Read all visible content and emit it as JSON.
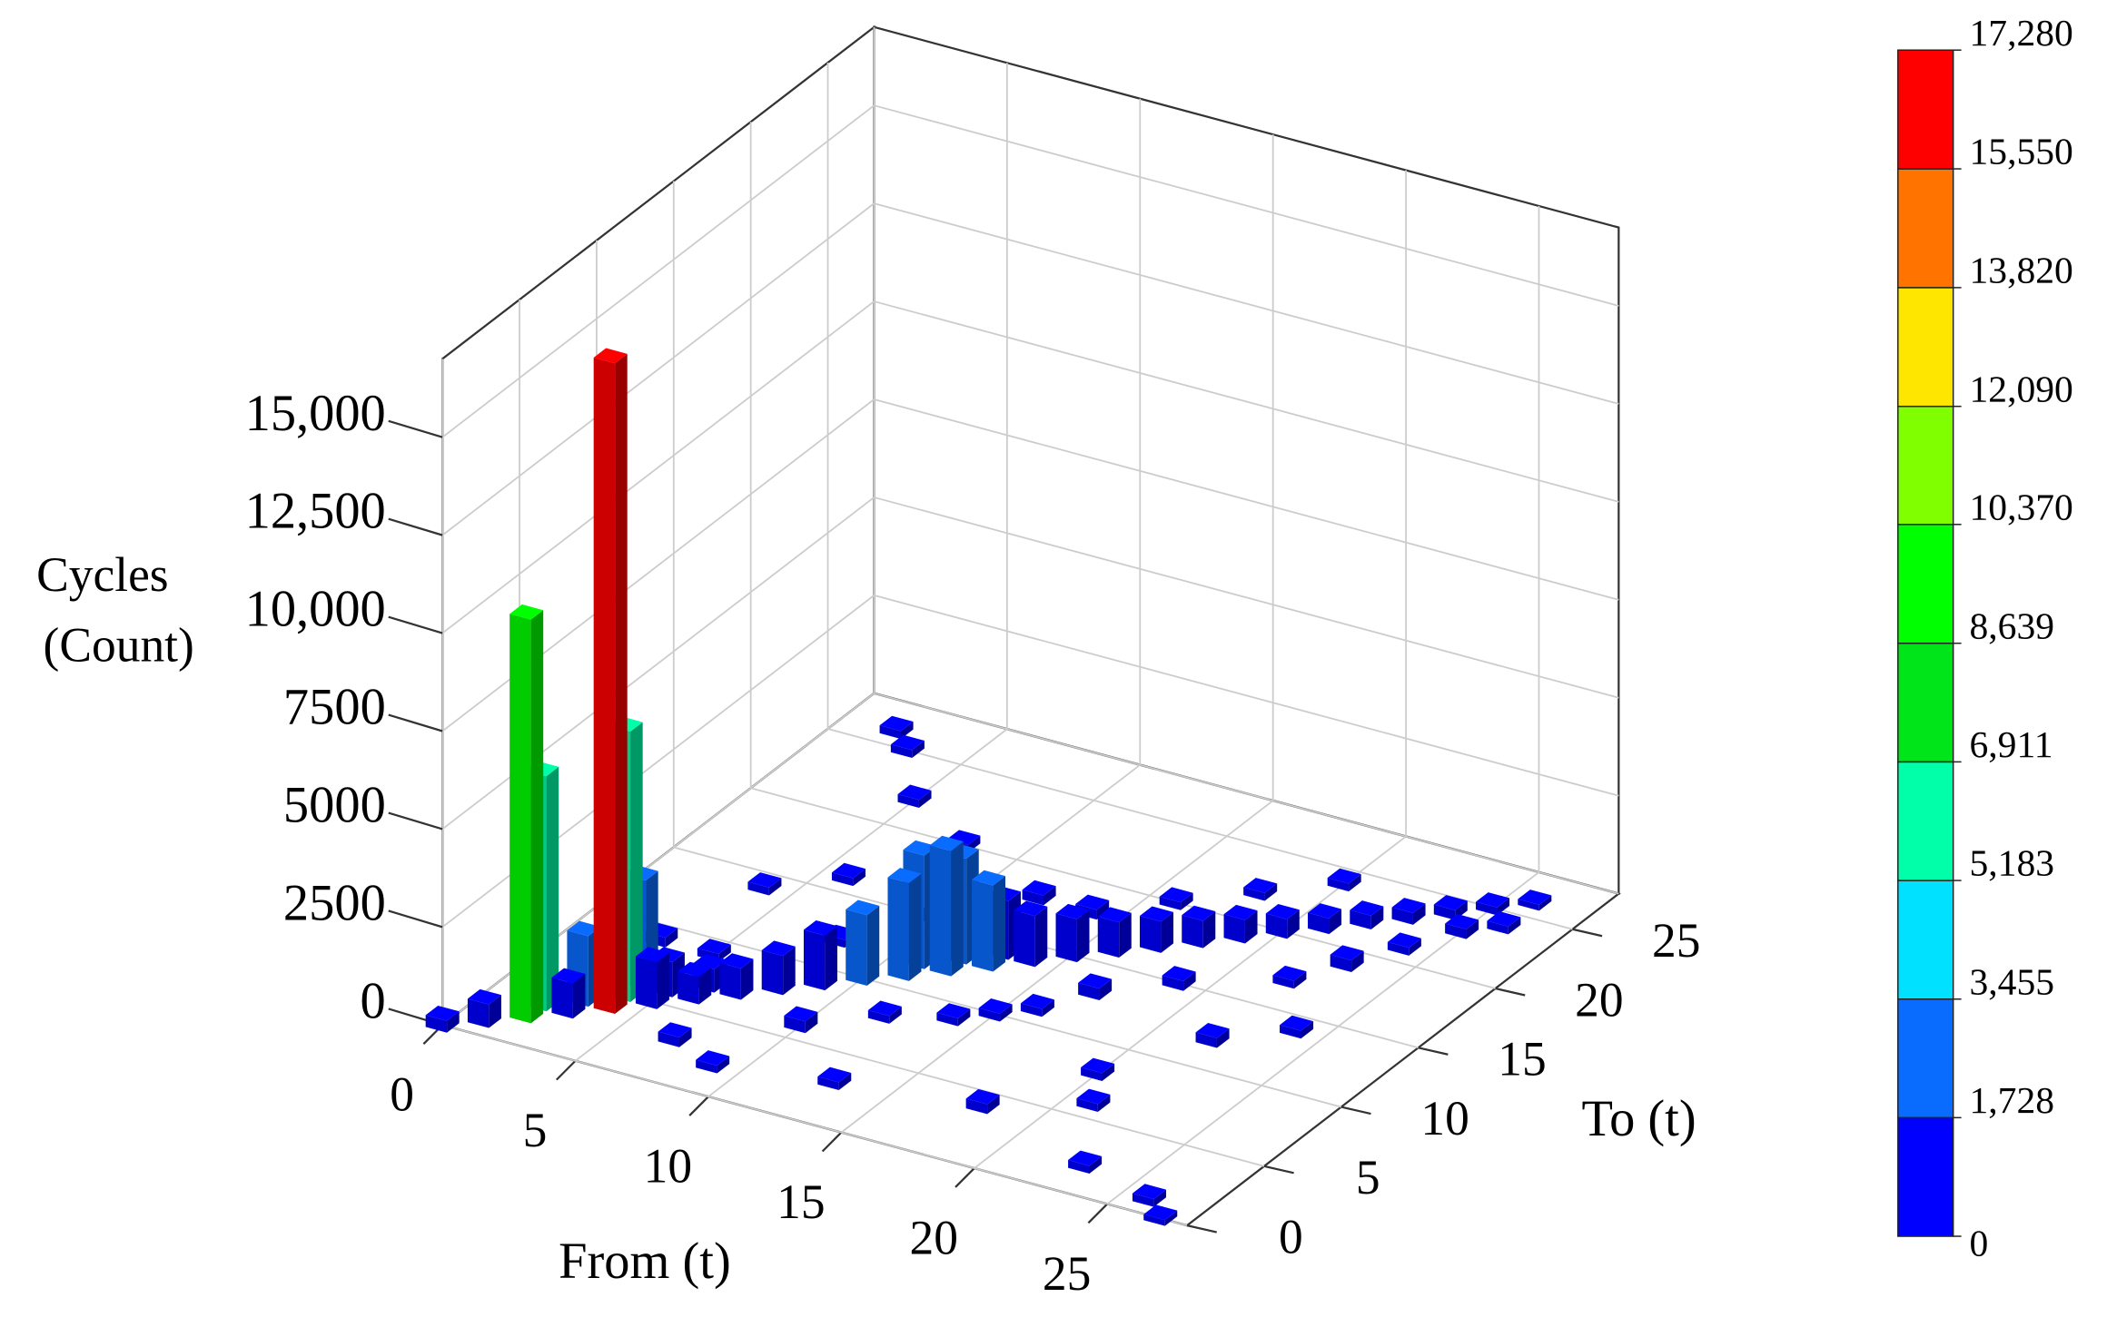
{
  "chart_data": {
    "type": "bar3d",
    "x_label": "From (t)",
    "y_label": "To (t)",
    "z_label": [
      "Cycles",
      "(Count)"
    ],
    "xlim": [
      0,
      28
    ],
    "ylim": [
      0,
      28
    ],
    "zlim": [
      0,
      17000
    ],
    "xticks": [
      0,
      5,
      10,
      15,
      20,
      25
    ],
    "yticks": [
      0,
      5,
      10,
      15,
      20,
      25
    ],
    "zticks": [
      0,
      2500,
      5000,
      7500,
      {
        "value": 10000,
        "label": "10,000"
      },
      {
        "value": 12500,
        "label": "12,500"
      },
      {
        "value": 15000,
        "label": "15,000"
      }
    ],
    "grid": true,
    "bars": {
      "from": [
        0,
        1,
        2,
        2,
        3,
        3,
        4,
        4,
        4,
        5,
        5,
        6,
        6,
        7,
        8,
        9,
        10,
        11,
        11,
        12,
        12,
        13,
        13,
        14,
        15,
        16,
        17,
        18,
        19,
        20,
        21,
        22,
        23,
        24,
        25,
        26,
        5,
        7,
        8,
        10,
        12,
        14,
        15,
        16,
        17,
        18,
        19,
        20,
        22,
        23,
        24,
        25,
        9,
        13,
        18,
        21,
        23,
        26,
        27,
        3,
        4,
        6,
        8,
        5,
        3,
        2,
        10,
        12,
        14,
        16,
        20,
        22,
        24,
        26
      ],
      "to": [
        0,
        1,
        2,
        3,
        3,
        4,
        4,
        5,
        6,
        5,
        6,
        6,
        7,
        7,
        8,
        9,
        10,
        11,
        12,
        12,
        13,
        13,
        14,
        14,
        15,
        16,
        17,
        18,
        19,
        20,
        21,
        22,
        23,
        24,
        25,
        26,
        9,
        3,
        12,
        6,
        8,
        18,
        10,
        20,
        13,
        22,
        15,
        24,
        17,
        19,
        21,
        23,
        2,
        3,
        4,
        6,
        2,
        1,
        0,
        9,
        14,
        16,
        20,
        22,
        25,
        26,
        15,
        18,
        9,
        11,
        8,
        12,
        14,
        24
      ],
      "values": [
        300,
        600,
        10300,
        6000,
        900,
        1800,
        16600,
        6900,
        2800,
        1200,
        900,
        700,
        600,
        800,
        1000,
        1400,
        1800,
        2500,
        2900,
        3200,
        2700,
        2200,
        1500,
        1300,
        1100,
        900,
        800,
        700,
        600,
        500,
        400,
        350,
        300,
        250,
        200,
        150,
        200,
        250,
        200,
        300,
        200,
        250,
        200,
        200,
        300,
        200,
        250,
        200,
        200,
        300,
        200,
        250,
        200,
        200,
        250,
        200,
        200,
        200,
        150,
        250,
        200,
        200,
        200,
        200,
        200,
        200,
        300,
        250,
        200,
        200,
        200,
        250,
        200,
        200
      ]
    },
    "colorbar": {
      "ticks": [
        0,
        {
          "value": 1728,
          "label": "1,728"
        },
        {
          "value": 3455,
          "label": "3,455"
        },
        {
          "value": 5183,
          "label": "5,183"
        },
        {
          "value": 6911,
          "label": "6,911"
        },
        {
          "value": 8639,
          "label": "8,639"
        },
        {
          "value": 10370,
          "label": "10,370"
        },
        {
          "value": 12090,
          "label": "12,090"
        },
        {
          "value": 13820,
          "label": "13,820"
        },
        {
          "value": 15550,
          "label": "15,550"
        },
        {
          "value": 17280,
          "label": "17,280"
        }
      ],
      "colors": [
        "#0000ff",
        "#0a6cff",
        "#00e0ff",
        "#00ffa8",
        "#00e51a",
        "#00ff00",
        "#7fff00",
        "#ffe600",
        "#ff7300",
        "#ff0000"
      ]
    }
  }
}
